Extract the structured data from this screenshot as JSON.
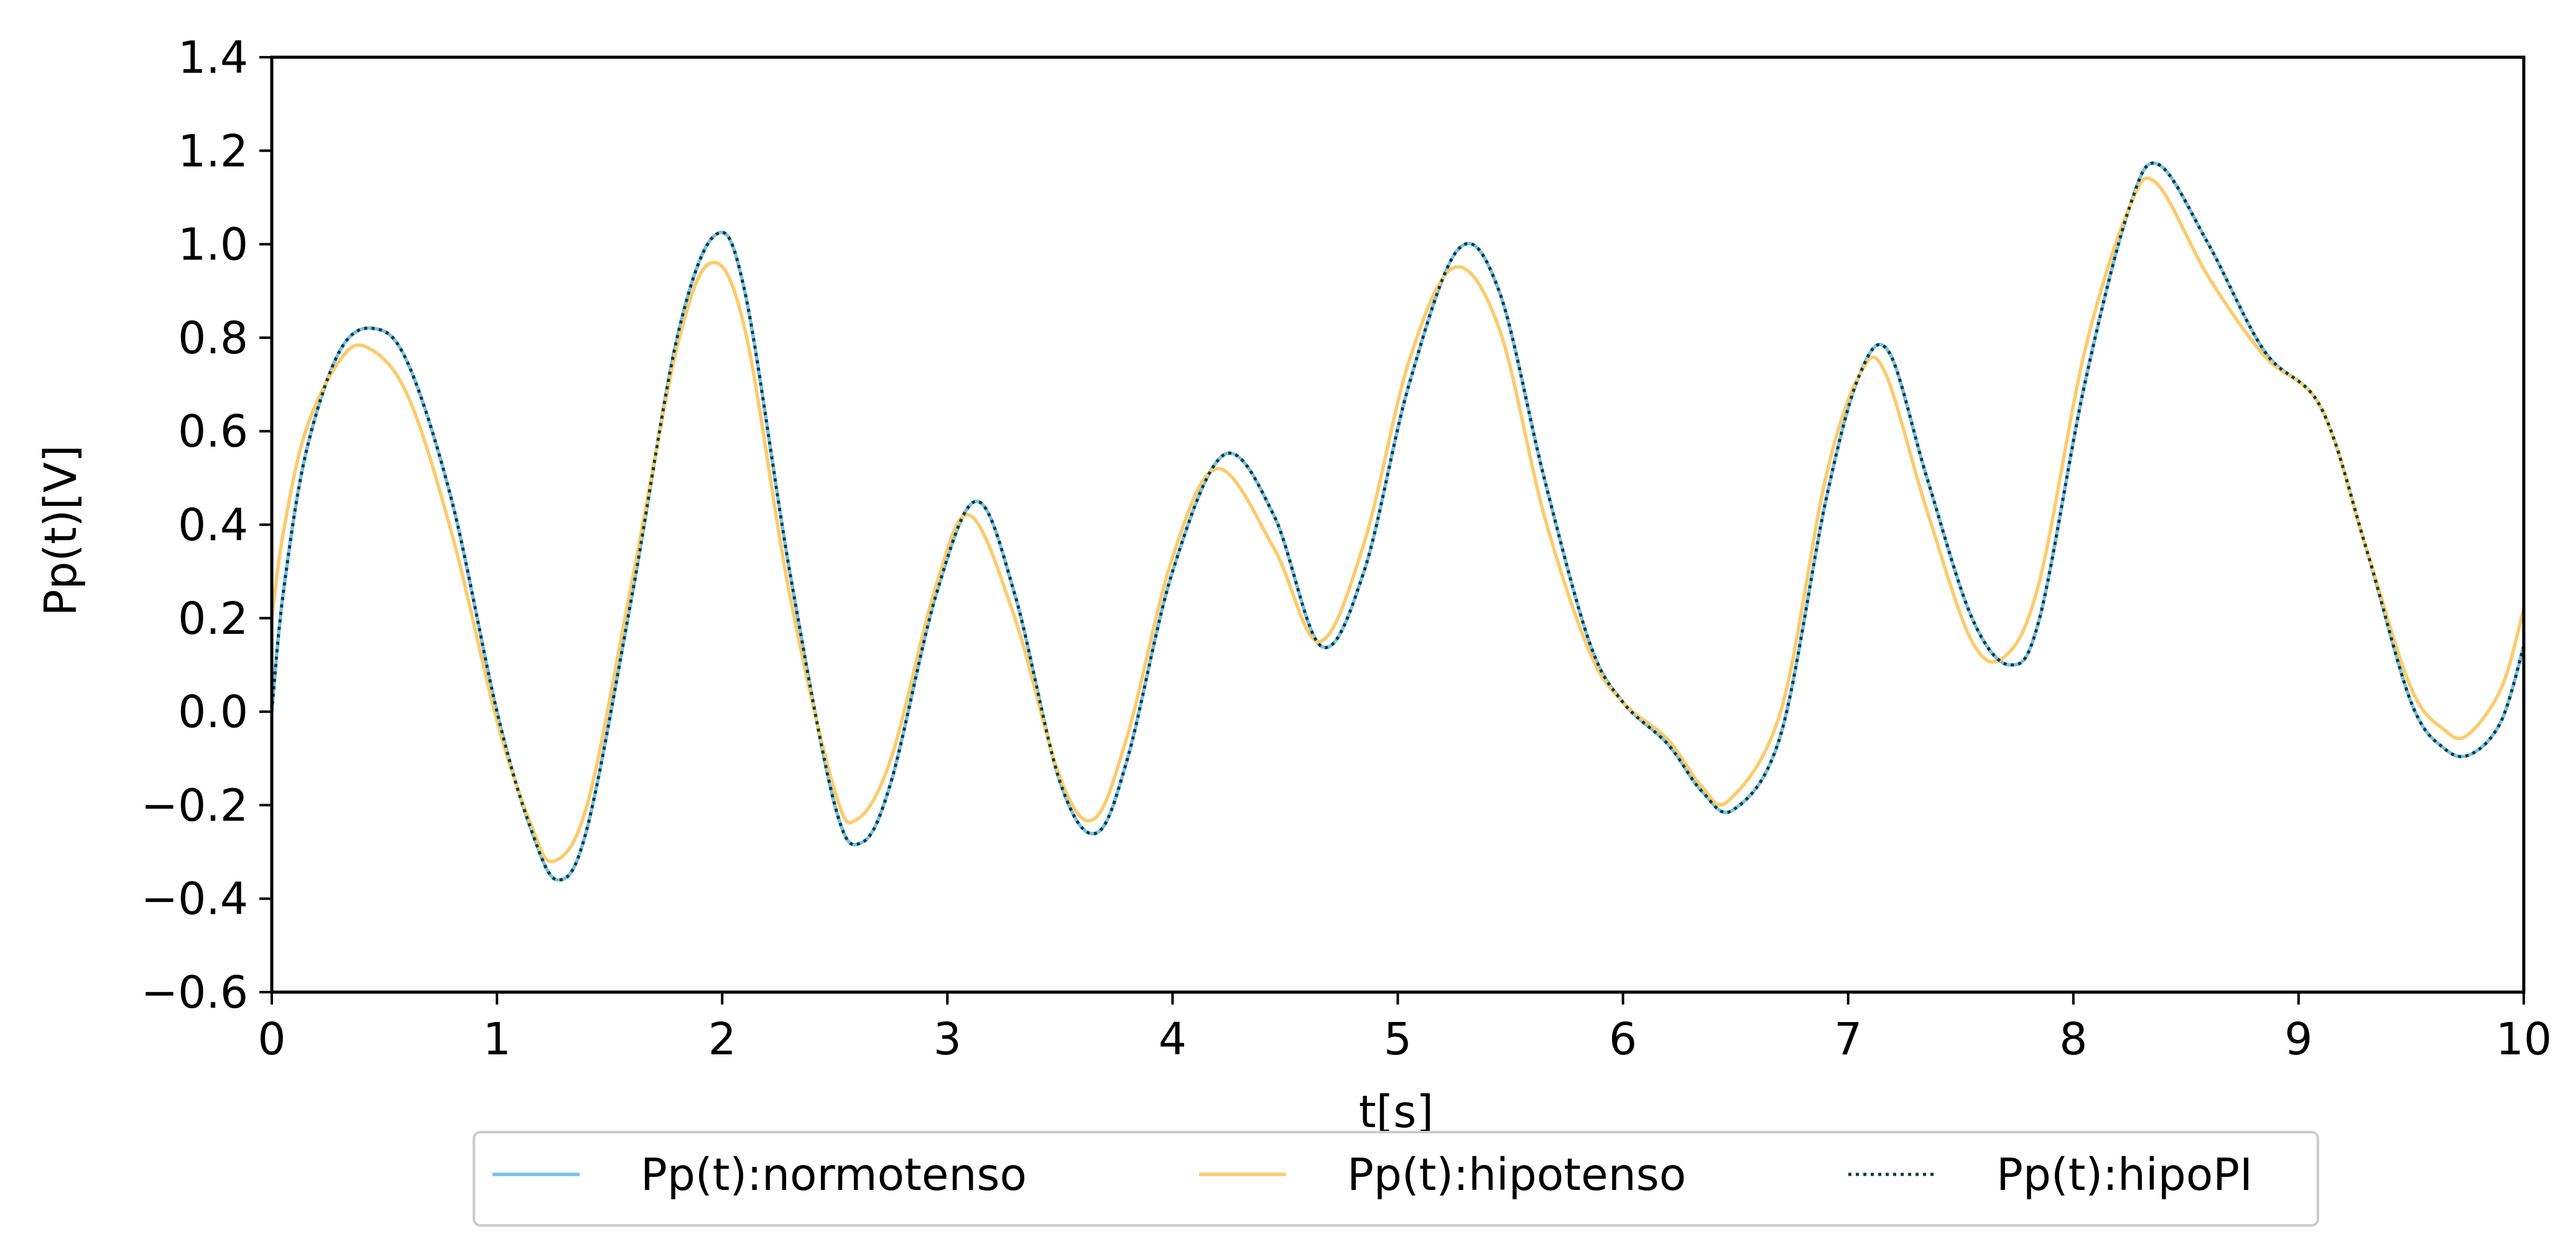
{
  "chart_data": {
    "type": "line",
    "title": "",
    "xlabel": "t[s]",
    "ylabel": "Pp(t)[V]",
    "xlim": [
      0,
      10
    ],
    "ylim": [
      -0.6,
      1.4
    ],
    "xticks": [
      0,
      1,
      2,
      3,
      4,
      5,
      6,
      7,
      8,
      9,
      10
    ],
    "xtick_labels": [
      "0",
      "1",
      "2",
      "3",
      "4",
      "5",
      "6",
      "7",
      "8",
      "9",
      "10"
    ],
    "yticks": [
      -0.6,
      -0.4,
      -0.2,
      0.0,
      0.2,
      0.4,
      0.6,
      0.8,
      1.0,
      1.2,
      1.4
    ],
    "ytick_labels": [
      "−0.6",
      "−0.4",
      "−0.2",
      "0.0",
      "0.2",
      "0.4",
      "0.6",
      "0.8",
      "1.0",
      "1.2",
      "1.4"
    ],
    "grid": false,
    "legend": {
      "position": "bottom-center",
      "columns": 3
    },
    "series": [
      {
        "name": "Pp(t):normotenso",
        "color": "#7bc0e8",
        "style": "solid",
        "x": [
          0,
          0.05,
          0.15,
          0.3,
          0.45,
          0.6,
          0.8,
          1.0,
          1.15,
          1.27,
          1.4,
          1.6,
          1.8,
          1.97,
          2.1,
          2.3,
          2.5,
          2.62,
          2.75,
          2.95,
          3.13,
          3.3,
          3.5,
          3.66,
          3.8,
          4.0,
          4.23,
          4.45,
          4.66,
          4.85,
          5.05,
          5.27,
          5.45,
          5.65,
          5.85,
          6.0,
          6.2,
          6.35,
          6.49,
          6.7,
          6.9,
          7.05,
          7.18,
          7.35,
          7.55,
          7.72,
          7.85,
          8.05,
          8.25,
          8.38,
          8.6,
          8.85,
          9.1,
          9.3,
          9.5,
          9.65,
          9.77,
          9.9,
          10.0
        ],
        "y": [
          0.0,
          0.25,
          0.55,
          0.77,
          0.82,
          0.75,
          0.45,
          0.0,
          -0.25,
          -0.36,
          -0.25,
          0.25,
          0.8,
          1.02,
          0.9,
          0.3,
          -0.2,
          -0.28,
          -0.15,
          0.25,
          0.45,
          0.25,
          -0.15,
          -0.26,
          -0.1,
          0.3,
          0.55,
          0.42,
          0.14,
          0.3,
          0.7,
          0.99,
          0.9,
          0.5,
          0.15,
          0.02,
          -0.07,
          -0.17,
          -0.21,
          -0.05,
          0.45,
          0.72,
          0.77,
          0.5,
          0.2,
          0.1,
          0.2,
          0.7,
          1.08,
          1.17,
          1.0,
          0.77,
          0.65,
          0.35,
          0.02,
          -0.08,
          -0.09,
          -0.02,
          0.14
        ]
      },
      {
        "name": "Pp(t):hipotenso",
        "color": "#fccb6d",
        "style": "solid",
        "x": [
          0,
          0.05,
          0.15,
          0.3,
          0.42,
          0.6,
          0.8,
          1.0,
          1.15,
          1.25,
          1.4,
          1.6,
          1.8,
          1.95,
          2.1,
          2.3,
          2.5,
          2.6,
          2.75,
          2.95,
          3.1,
          3.3,
          3.5,
          3.65,
          3.8,
          4.0,
          4.2,
          4.45,
          4.65,
          4.85,
          5.05,
          5.25,
          5.45,
          5.65,
          5.85,
          6.0,
          6.2,
          6.35,
          6.47,
          6.7,
          6.9,
          7.05,
          7.16,
          7.35,
          7.55,
          7.7,
          7.85,
          8.05,
          8.25,
          8.37,
          8.6,
          8.85,
          9.1,
          9.3,
          9.5,
          9.65,
          9.75,
          9.9,
          10.0
        ],
        "y": [
          0.2,
          0.38,
          0.6,
          0.75,
          0.78,
          0.68,
          0.38,
          -0.02,
          -0.24,
          -0.32,
          -0.2,
          0.28,
          0.78,
          0.96,
          0.82,
          0.25,
          -0.17,
          -0.23,
          -0.1,
          0.27,
          0.42,
          0.2,
          -0.14,
          -0.23,
          -0.05,
          0.33,
          0.52,
          0.35,
          0.15,
          0.36,
          0.75,
          0.95,
          0.82,
          0.42,
          0.13,
          0.02,
          -0.06,
          -0.16,
          -0.19,
          0.0,
          0.5,
          0.72,
          0.73,
          0.43,
          0.15,
          0.12,
          0.28,
          0.77,
          1.08,
          1.13,
          0.93,
          0.76,
          0.65,
          0.35,
          0.05,
          -0.04,
          -0.05,
          0.05,
          0.22
        ]
      },
      {
        "name": "Pp(t):hipoPI",
        "color": "#0b3d3a",
        "style": "dotted",
        "x": [
          0,
          0.05,
          0.15,
          0.3,
          0.45,
          0.6,
          0.8,
          1.0,
          1.15,
          1.27,
          1.4,
          1.6,
          1.8,
          1.97,
          2.1,
          2.3,
          2.5,
          2.62,
          2.75,
          2.95,
          3.13,
          3.3,
          3.5,
          3.66,
          3.8,
          4.0,
          4.23,
          4.45,
          4.66,
          4.85,
          5.05,
          5.27,
          5.45,
          5.65,
          5.85,
          6.0,
          6.2,
          6.35,
          6.49,
          6.7,
          6.9,
          7.05,
          7.18,
          7.35,
          7.55,
          7.72,
          7.85,
          8.05,
          8.25,
          8.38,
          8.6,
          8.85,
          9.1,
          9.3,
          9.5,
          9.65,
          9.77,
          9.9,
          10.0
        ],
        "y": [
          0.0,
          0.25,
          0.55,
          0.77,
          0.82,
          0.75,
          0.45,
          0.0,
          -0.25,
          -0.36,
          -0.25,
          0.25,
          0.8,
          1.02,
          0.9,
          0.3,
          -0.2,
          -0.28,
          -0.15,
          0.25,
          0.45,
          0.25,
          -0.15,
          -0.26,
          -0.1,
          0.3,
          0.55,
          0.42,
          0.14,
          0.3,
          0.7,
          0.99,
          0.9,
          0.5,
          0.15,
          0.02,
          -0.07,
          -0.17,
          -0.21,
          -0.05,
          0.45,
          0.72,
          0.77,
          0.5,
          0.2,
          0.1,
          0.2,
          0.7,
          1.08,
          1.17,
          1.0,
          0.77,
          0.65,
          0.35,
          0.02,
          -0.08,
          -0.09,
          -0.02,
          0.14
        ]
      }
    ]
  }
}
